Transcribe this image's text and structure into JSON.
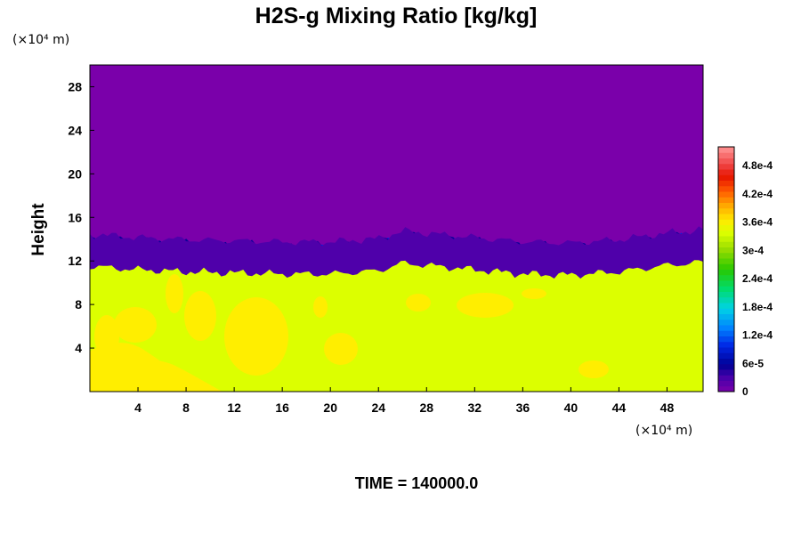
{
  "chart_data": {
    "type": "heatmap",
    "title": "H2S-g Mixing Ratio [kg/kg]",
    "ylabel": "Height",
    "x_unit": "(×10⁴ m)",
    "y_unit": "(×10⁴ m)",
    "footer": "TIME = 140000.0",
    "xlim": [
      0,
      51
    ],
    "ylim": [
      0,
      30
    ],
    "x_ticks": [
      4,
      8,
      12,
      16,
      20,
      24,
      28,
      32,
      36,
      40,
      44,
      48
    ],
    "x_tick_labels": [
      "4",
      "8",
      "12",
      "16",
      "20",
      "24",
      "28",
      "32",
      "36",
      "40",
      "44",
      "48"
    ],
    "y_ticks": [
      4,
      8,
      12,
      16,
      20,
      24,
      28
    ],
    "y_tick_labels": [
      "4",
      "8",
      "12",
      "16",
      "20",
      "24",
      "28"
    ],
    "colorbar": {
      "min": 0,
      "max": 0.00052,
      "ticks": [
        0,
        6e-05,
        0.00012,
        0.00018,
        0.00024,
        0.0003,
        0.00036,
        0.00042,
        0.00048
      ],
      "tick_labels": [
        "0",
        "6e-5",
        "1.2e-4",
        "1.8e-4",
        "2.4e-4",
        "3e-4",
        "3.6e-4",
        "4.2e-4",
        "4.8e-4"
      ]
    },
    "fields": {
      "upper_value": 0,
      "lower_value": 0.00034,
      "interface_height": [
        [
          0,
          12.6
        ],
        [
          4,
          12.3
        ],
        [
          8,
          12.1
        ],
        [
          12,
          12.0
        ],
        [
          16,
          11.9
        ],
        [
          20,
          11.9
        ],
        [
          24,
          12.2
        ],
        [
          26,
          12.9
        ],
        [
          28,
          12.7
        ],
        [
          32,
          12.3
        ],
        [
          36,
          11.9
        ],
        [
          40,
          11.8
        ],
        [
          44,
          12.1
        ],
        [
          48,
          12.7
        ],
        [
          51,
          13.0
        ]
      ]
    }
  },
  "colors": {
    "upper_region": "#7a00aa",
    "lower_region": "#dcff00",
    "blob": "#ffee00",
    "interface_peak": "#ff3300"
  }
}
